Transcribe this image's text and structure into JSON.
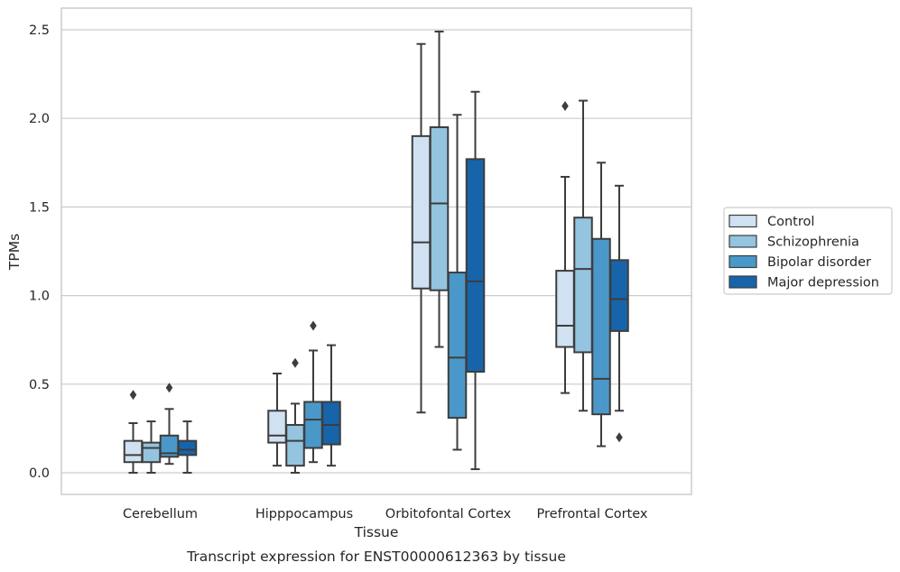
{
  "chart_data": {
    "type": "box",
    "xlabel": "Tissue",
    "ylabel": "TPMs",
    "caption": "Transcript expression for ENST00000612363 by tissue",
    "ylim": [
      -0.12,
      2.62
    ],
    "yticks": [
      0.0,
      0.5,
      1.0,
      1.5,
      2.0,
      2.5
    ],
    "ytick_labels": [
      "0.0",
      "0.5",
      "1.0",
      "1.5",
      "2.0",
      "2.5"
    ],
    "grid": "horizontal",
    "legend_position": "right",
    "categories": [
      "Cerebellum",
      "Hipppocampus",
      "Orbitofontal Cortex",
      "Prefrontal Cortex"
    ],
    "series": [
      {
        "name": "Control",
        "color": "#d0e1f2",
        "boxes": [
          {
            "whislo": 0.0,
            "q1": 0.06,
            "med": 0.1,
            "q3": 0.18,
            "whishi": 0.28,
            "fliers": [
              0.44
            ]
          },
          {
            "whislo": 0.04,
            "q1": 0.17,
            "med": 0.21,
            "q3": 0.35,
            "whishi": 0.56,
            "fliers": []
          },
          {
            "whislo": 0.34,
            "q1": 1.04,
            "med": 1.3,
            "q3": 1.9,
            "whishi": 2.42,
            "fliers": []
          },
          {
            "whislo": 0.45,
            "q1": 0.71,
            "med": 0.83,
            "q3": 1.14,
            "whishi": 1.67,
            "fliers": [
              2.07
            ]
          }
        ]
      },
      {
        "name": "Schizophrenia",
        "color": "#94c4df",
        "boxes": [
          {
            "whislo": 0.0,
            "q1": 0.06,
            "med": 0.14,
            "q3": 0.17,
            "whishi": 0.29,
            "fliers": []
          },
          {
            "whislo": 0.0,
            "q1": 0.04,
            "med": 0.18,
            "q3": 0.27,
            "whishi": 0.39,
            "fliers": [
              0.62
            ]
          },
          {
            "whislo": 0.71,
            "q1": 1.03,
            "med": 1.52,
            "q3": 1.95,
            "whishi": 2.49,
            "fliers": []
          },
          {
            "whislo": 0.35,
            "q1": 0.68,
            "med": 1.15,
            "q3": 1.44,
            "whishi": 2.1,
            "fliers": []
          }
        ]
      },
      {
        "name": "Bipolar disorder",
        "color": "#4a98c9",
        "boxes": [
          {
            "whislo": 0.05,
            "q1": 0.09,
            "med": 0.11,
            "q3": 0.21,
            "whishi": 0.36,
            "fliers": [
              0.48
            ]
          },
          {
            "whislo": 0.06,
            "q1": 0.14,
            "med": 0.3,
            "q3": 0.4,
            "whishi": 0.69,
            "fliers": [
              0.83
            ]
          },
          {
            "whislo": 0.13,
            "q1": 0.31,
            "med": 0.65,
            "q3": 1.13,
            "whishi": 2.02,
            "fliers": []
          },
          {
            "whislo": 0.15,
            "q1": 0.33,
            "med": 0.53,
            "q3": 1.32,
            "whishi": 1.75,
            "fliers": []
          }
        ]
      },
      {
        "name": "Major depression",
        "color": "#1764ab",
        "boxes": [
          {
            "whislo": 0.0,
            "q1": 0.1,
            "med": 0.13,
            "q3": 0.18,
            "whishi": 0.29,
            "fliers": []
          },
          {
            "whislo": 0.04,
            "q1": 0.16,
            "med": 0.27,
            "q3": 0.4,
            "whishi": 0.72,
            "fliers": []
          },
          {
            "whislo": 0.02,
            "q1": 0.57,
            "med": 1.08,
            "q3": 1.77,
            "whishi": 2.15,
            "fliers": []
          },
          {
            "whislo": 0.35,
            "q1": 0.8,
            "med": 0.98,
            "q3": 1.2,
            "whishi": 1.62,
            "fliers": [
              0.2
            ]
          }
        ]
      }
    ]
  },
  "colors": {
    "grid": "#cccccc",
    "frame": "#cccccc",
    "box_edge": "#3d3d3d",
    "legend_edge": "#cccccc"
  }
}
